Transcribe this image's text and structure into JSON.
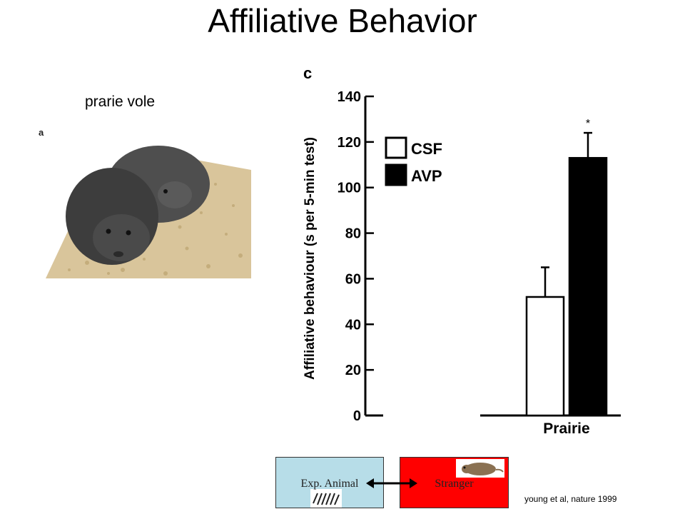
{
  "slide": {
    "title": "Affiliative Behavior",
    "photo_caption": "prarie vole",
    "photo_panel_letter": "a",
    "citation": "young et al, nature 1999"
  },
  "diagram": {
    "exp_animal_label": "Exp. Animal",
    "stranger_label": "Stranger"
  },
  "chart_data": {
    "type": "bar",
    "panel_letter": "c",
    "ylabel": "Affiliative behaviour (s per 5-min test)",
    "ylim": [
      0,
      140
    ],
    "yticks": [
      0,
      20,
      40,
      60,
      80,
      100,
      120,
      140
    ],
    "categories": [
      "Prairie"
    ],
    "series": [
      {
        "name": "CSF",
        "values": [
          52
        ],
        "errors": [
          13
        ],
        "fill": "#ffffff"
      },
      {
        "name": "AVP",
        "values": [
          113
        ],
        "errors": [
          11
        ],
        "fill": "#000000"
      }
    ],
    "significance": [
      {
        "category": "Prairie",
        "series": "AVP",
        "mark": "*"
      }
    ],
    "legend_position": "top-left"
  }
}
